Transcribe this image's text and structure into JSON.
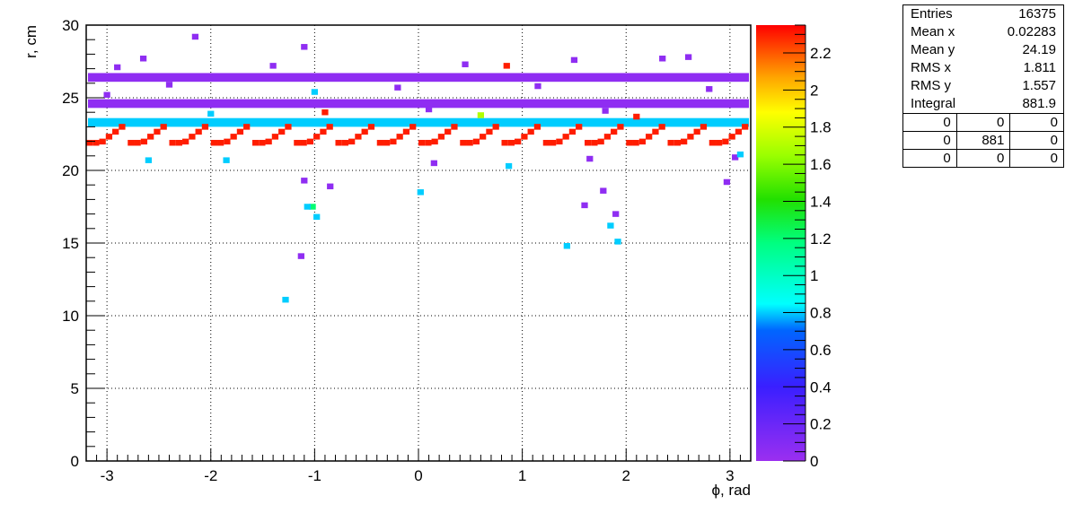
{
  "chart_data": {
    "type": "heatmap",
    "xlabel": "ϕ, rad",
    "ylabel": "r, cm",
    "xlim": [
      -3.2,
      3.2
    ],
    "ylim": [
      0,
      30
    ],
    "x_ticks": [
      "-3",
      "-2",
      "-1",
      "0",
      "1",
      "2",
      "3"
    ],
    "x_tick_values": [
      -3,
      -2,
      -1,
      0,
      1,
      2,
      3
    ],
    "y_ticks": [
      "0",
      "5",
      "10",
      "15",
      "20",
      "25",
      "30"
    ],
    "y_tick_values": [
      0,
      5,
      10,
      15,
      20,
      25,
      30
    ],
    "grid": true,
    "color_scale": {
      "min": 0,
      "max": 2.35,
      "ticks": [
        "0",
        "0.2",
        "0.4",
        "0.6",
        "0.8",
        "1",
        "1.2",
        "1.4",
        "1.6",
        "1.8",
        "2",
        "2.2"
      ],
      "tick_values": [
        0,
        0.2,
        0.4,
        0.6,
        0.8,
        1,
        1.2,
        1.4,
        1.6,
        1.8,
        2,
        2.2
      ]
    },
    "bands": [
      {
        "r": 26.4,
        "value": 0.05
      },
      {
        "r": 24.6,
        "value": 0.05
      },
      {
        "r": 23.3,
        "value": 0.8
      }
    ],
    "sawtooth": {
      "segments": 16,
      "r_min": 21.9,
      "r_max": 23.0,
      "value": 2.3
    },
    "points": [
      {
        "x": -2.15,
        "y": 29.2,
        "v": 0.05
      },
      {
        "x": -2.65,
        "y": 27.7,
        "v": 0.05
      },
      {
        "x": -1.1,
        "y": 28.5,
        "v": 0.05
      },
      {
        "x": 0.85,
        "y": 27.2,
        "v": 2.3
      },
      {
        "x": 1.5,
        "y": 27.6,
        "v": 0.05
      },
      {
        "x": 2.35,
        "y": 27.7,
        "v": 0.05
      },
      {
        "x": 2.6,
        "y": 27.8,
        "v": 0.05
      },
      {
        "x": -2.9,
        "y": 27.1,
        "v": 0.05
      },
      {
        "x": -1.4,
        "y": 27.2,
        "v": 0.05
      },
      {
        "x": 0.45,
        "y": 27.3,
        "v": 0.05
      },
      {
        "x": -2.4,
        "y": 25.9,
        "v": 0.05
      },
      {
        "x": -0.2,
        "y": 25.7,
        "v": 0.05
      },
      {
        "x": 1.15,
        "y": 25.8,
        "v": 0.05
      },
      {
        "x": 2.8,
        "y": 25.6,
        "v": 0.05
      },
      {
        "x": -1.0,
        "y": 25.4,
        "v": 0.8
      },
      {
        "x": -3.0,
        "y": 25.2,
        "v": 0.05
      },
      {
        "x": 0.1,
        "y": 24.2,
        "v": 0.05
      },
      {
        "x": -0.9,
        "y": 24.0,
        "v": 2.3
      },
      {
        "x": 1.8,
        "y": 24.1,
        "v": 0.05
      },
      {
        "x": -2.0,
        "y": 23.9,
        "v": 0.8
      },
      {
        "x": 0.6,
        "y": 23.8,
        "v": 1.7
      },
      {
        "x": 2.1,
        "y": 23.7,
        "v": 2.3
      },
      {
        "x": -2.6,
        "y": 20.7,
        "v": 0.8
      },
      {
        "x": -1.85,
        "y": 20.7,
        "v": 0.8
      },
      {
        "x": 0.15,
        "y": 20.5,
        "v": 0.05
      },
      {
        "x": 0.87,
        "y": 20.3,
        "v": 0.8
      },
      {
        "x": 1.65,
        "y": 20.8,
        "v": 0.05
      },
      {
        "x": 3.05,
        "y": 20.9,
        "v": 0.05
      },
      {
        "x": 3.1,
        "y": 21.1,
        "v": 0.8
      },
      {
        "x": -1.1,
        "y": 19.3,
        "v": 0.05
      },
      {
        "x": -0.85,
        "y": 18.9,
        "v": 0.05
      },
      {
        "x": 0.02,
        "y": 18.5,
        "v": 0.8
      },
      {
        "x": 1.78,
        "y": 18.6,
        "v": 0.05
      },
      {
        "x": 2.97,
        "y": 19.2,
        "v": 0.05
      },
      {
        "x": -1.02,
        "y": 17.5,
        "v": 1.2
      },
      {
        "x": -1.07,
        "y": 17.5,
        "v": 0.8
      },
      {
        "x": 1.6,
        "y": 17.6,
        "v": 0.05
      },
      {
        "x": -0.98,
        "y": 16.8,
        "v": 0.8
      },
      {
        "x": 1.9,
        "y": 17.0,
        "v": 0.05
      },
      {
        "x": 1.85,
        "y": 16.2,
        "v": 0.8
      },
      {
        "x": 1.92,
        "y": 15.1,
        "v": 0.8
      },
      {
        "x": 1.43,
        "y": 14.8,
        "v": 0.8
      },
      {
        "x": -1.13,
        "y": 14.1,
        "v": 0.05
      },
      {
        "x": -1.28,
        "y": 11.1,
        "v": 0.8
      }
    ]
  },
  "stats": {
    "entries_label": "Entries",
    "entries_value": "16375",
    "mean_x_label": "Mean x",
    "mean_x_value": "0.02283",
    "mean_y_label": "Mean y",
    "mean_y_value": "24.19",
    "rms_x_label": "RMS x",
    "rms_x_value": "1.811",
    "rms_y_label": "RMS y",
    "rms_y_value": "1.557",
    "integral_label": "Integral",
    "integral_value": "881.9",
    "grid": [
      [
        "0",
        "0",
        "0"
      ],
      [
        "0",
        "881",
        "0"
      ],
      [
        "0",
        "0",
        "0"
      ]
    ]
  }
}
